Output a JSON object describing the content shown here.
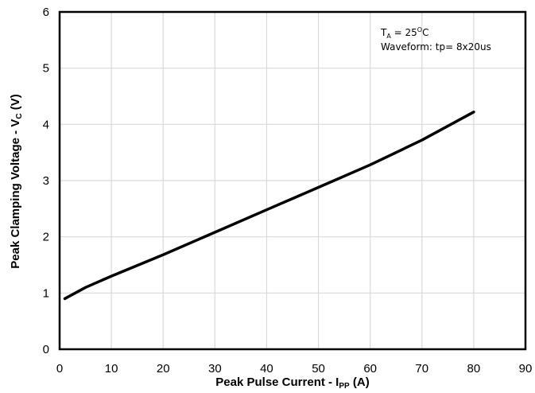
{
  "chart_data": {
    "type": "line",
    "xlabel": {
      "main": "Peak Pulse Current - I",
      "sub": "PP",
      "tail": " (A)"
    },
    "ylabel": {
      "main": "Peak Clamping Voltage - V",
      "sub": "C",
      "tail": " (V)"
    },
    "xlim": [
      0,
      90
    ],
    "ylim": [
      0,
      6
    ],
    "x_ticks": [
      "0",
      "10",
      "20",
      "30",
      "40",
      "50",
      "60",
      "70",
      "80",
      "90"
    ],
    "y_ticks": [
      "0",
      "1",
      "2",
      "3",
      "4",
      "5",
      "6"
    ],
    "grid": true,
    "annotation": {
      "line1": {
        "t": "T",
        "sub": "A",
        "mid": " = 25",
        "sup": "O",
        "tail": "C"
      },
      "line2": "Waveform: tp= 8x20us"
    },
    "series": [
      {
        "color": "#000000",
        "x": [
          1,
          5,
          10,
          20,
          30,
          40,
          50,
          60,
          70,
          80
        ],
        "y": [
          0.9,
          1.1,
          1.3,
          1.68,
          2.08,
          2.48,
          2.88,
          3.28,
          3.72,
          4.22
        ]
      }
    ]
  }
}
